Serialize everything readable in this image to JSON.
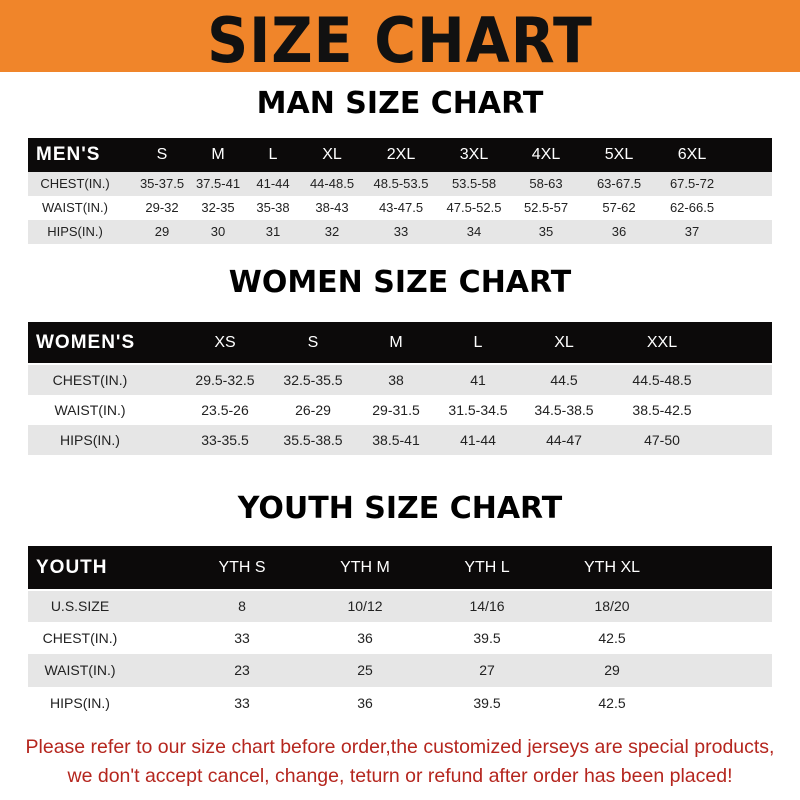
{
  "banner_title": "SIZE CHART",
  "men": {
    "title": "MAN SIZE CHART",
    "header": [
      "MEN'S",
      "S",
      "M",
      "L",
      "XL",
      "2XL",
      "3XL",
      "4XL",
      "5XL",
      "6XL"
    ],
    "rows": [
      [
        "CHEST(IN.)",
        "35-37.5",
        "37.5-41",
        "41-44",
        "44-48.5",
        "48.5-53.5",
        "53.5-58",
        "58-63",
        "63-67.5",
        "67.5-72"
      ],
      [
        "WAIST(IN.)",
        "29-32",
        "32-35",
        "35-38",
        "38-43",
        "43-47.5",
        "47.5-52.5",
        "52.5-57",
        "57-62",
        "62-66.5"
      ],
      [
        "HIPS(IN.)",
        "29",
        "30",
        "31",
        "32",
        "33",
        "34",
        "35",
        "36",
        "37"
      ]
    ]
  },
  "women": {
    "title": "WOMEN SIZE CHART",
    "header": [
      "WOMEN'S",
      "XS",
      "S",
      "M",
      "L",
      "XL",
      "XXL"
    ],
    "rows": [
      [
        "CHEST(IN.)",
        "29.5-32.5",
        "32.5-35.5",
        "38",
        "41",
        "44.5",
        "44.5-48.5"
      ],
      [
        "WAIST(IN.)",
        "23.5-26",
        "26-29",
        "29-31.5",
        "31.5-34.5",
        "34.5-38.5",
        "38.5-42.5"
      ],
      [
        "HIPS(IN.)",
        "33-35.5",
        "35.5-38.5",
        "38.5-41",
        "41-44",
        "44-47",
        "47-50"
      ]
    ]
  },
  "youth": {
    "title": "YOUTH SIZE CHART",
    "header": [
      "YOUTH",
      "YTH S",
      "YTH M",
      "YTH L",
      "YTH XL"
    ],
    "rows": [
      [
        "U.S.SIZE",
        "8",
        "10/12",
        "14/16",
        "18/20"
      ],
      [
        "CHEST(IN.)",
        "33",
        "36",
        "39.5",
        "42.5"
      ],
      [
        "WAIST(IN.)",
        "23",
        "25",
        "27",
        "29"
      ],
      [
        "HIPS(IN.)",
        "33",
        "36",
        "39.5",
        "42.5"
      ]
    ]
  },
  "footer": {
    "line1": "Please refer to our size chart before order,the customized jerseys are special products,",
    "line2": "we don't accept cancel, change, teturn or refund after order has been placed!"
  },
  "colors": {
    "banner": "#f0852a",
    "header_row": "#0c0a0a",
    "notice_text": "#b5261e"
  }
}
